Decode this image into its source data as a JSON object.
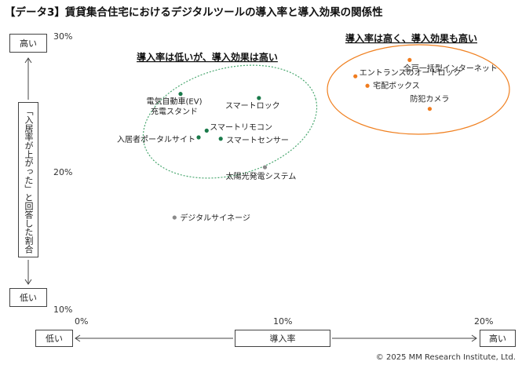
{
  "title": "【データ3】賃貸集合住宅におけるデジタルツールの導入率と導入効果の関係性",
  "copyright": "© 2025 MM Research Institute, Ltd.",
  "y_axis": {
    "high_label": "高い",
    "low_label": "低い",
    "caption": "「入居率が上がった」と回答した割合"
  },
  "x_axis": {
    "low_label": "低い",
    "high_label": "高い",
    "caption": "導入率"
  },
  "annotations": [
    {
      "text": "導入率は低いが、導入効果は高い",
      "color": "#2e8b57"
    },
    {
      "text": "導入率は高く、導入効果も高い",
      "color": "#f08020"
    }
  ],
  "colors": {
    "green": "#1a7a4a",
    "orange": "#f07c1e",
    "gray": "#8a8a8a",
    "green_ellipse": "#4aa870",
    "orange_ellipse": "#f08020"
  },
  "chart_data": {
    "type": "scatter",
    "title": "",
    "xlabel": "導入率",
    "ylabel": "「入居率が上がった」と回答した割合",
    "xlim": [
      0,
      20
    ],
    "ylim": [
      10,
      30
    ],
    "x_ticks": [
      "0%",
      "10%",
      "20%"
    ],
    "y_ticks": [
      "30%",
      "20%",
      "10%"
    ],
    "grid": false,
    "points": [
      {
        "label": "電気自動車(EV)\n充電スタンド",
        "x": 5.0,
        "y": 25.8,
        "group": "green"
      },
      {
        "label": "スマートロック",
        "x": 8.9,
        "y": 25.5,
        "group": "green"
      },
      {
        "label": "スマートリモコン",
        "x": 6.3,
        "y": 23.1,
        "group": "green"
      },
      {
        "label": "入居者ポータルサイト",
        "x": 5.9,
        "y": 22.6,
        "group": "green"
      },
      {
        "label": "スマートセンサー",
        "x": 7.0,
        "y": 22.5,
        "group": "green"
      },
      {
        "label": "太陽光発電システム",
        "x": 9.2,
        "y": 20.4,
        "group": "gray"
      },
      {
        "label": "デジタルサイネージ",
        "x": 4.7,
        "y": 16.7,
        "group": "gray"
      },
      {
        "label": "全戸一括型インターネット",
        "x": 16.4,
        "y": 28.3,
        "group": "orange"
      },
      {
        "label": "エントランスのオートロック",
        "x": 13.7,
        "y": 27.1,
        "group": "orange"
      },
      {
        "label": "宅配ボックス",
        "x": 14.3,
        "y": 26.4,
        "group": "orange"
      },
      {
        "label": "防犯カメラ",
        "x": 17.4,
        "y": 24.7,
        "group": "orange"
      }
    ]
  }
}
